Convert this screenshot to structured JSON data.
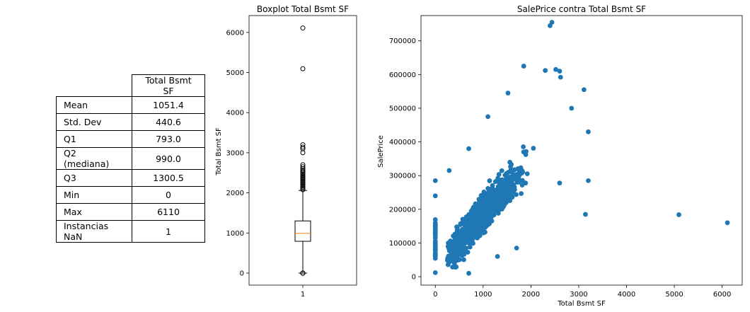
{
  "table": {
    "column_header": "Total Bsmt SF",
    "rows": [
      {
        "label": "Mean",
        "value": "1051.4"
      },
      {
        "label": "Std. Dev",
        "value": "440.6"
      },
      {
        "label": "Q1",
        "value": "793.0"
      },
      {
        "label": "Q2 (mediana)",
        "value": "990.0"
      },
      {
        "label": "Q3",
        "value": "1300.5"
      },
      {
        "label": "Min",
        "value": "0"
      },
      {
        "label": "Max",
        "value": "6110"
      },
      {
        "label": "Instancias NaN",
        "value": "1"
      }
    ]
  },
  "chart_data": [
    {
      "type": "boxplot",
      "title": "Boxplot Total Bsmt SF",
      "ylabel": "Total Bsmt SF",
      "xlabel": "",
      "x_tick_labels": [
        "1"
      ],
      "ylim": [
        -300,
        6420
      ],
      "y_ticks": [
        0,
        1000,
        2000,
        3000,
        4000,
        5000,
        6000
      ],
      "box": {
        "q1": 793.0,
        "median": 990.0,
        "q3": 1300.5,
        "whisker_low": 0,
        "whisker_high": 2060
      },
      "median_color": "#ff7f0e",
      "outliers": [
        0,
        0,
        0,
        2080,
        2110,
        2140,
        2170,
        2200,
        2230,
        2260,
        2290,
        2320,
        2350,
        2380,
        2410,
        2440,
        2470,
        2500,
        2530,
        2560,
        2600,
        2650,
        2700,
        3000,
        3100,
        3140,
        3200,
        5095,
        6110
      ]
    },
    {
      "type": "scatter",
      "title": "SalePrice contra Total Bsmt SF",
      "xlabel": "Total Bsmt SF",
      "ylabel": "SalePrice",
      "xlim": [
        -300,
        6420
      ],
      "ylim": [
        -25000,
        775000
      ],
      "x_ticks": [
        0,
        1000,
        2000,
        3000,
        4000,
        5000,
        6000
      ],
      "y_ticks": [
        0,
        100000,
        200000,
        300000,
        400000,
        500000,
        600000,
        700000
      ],
      "color": "#1f77b4",
      "notable_points": [
        {
          "x": 2400,
          "y": 745000
        },
        {
          "x": 2440,
          "y": 755000
        },
        {
          "x": 1520,
          "y": 545000
        },
        {
          "x": 1850,
          "y": 625000
        },
        {
          "x": 2300,
          "y": 612000
        },
        {
          "x": 2520,
          "y": 615000
        },
        {
          "x": 2600,
          "y": 610000
        },
        {
          "x": 2620,
          "y": 592000
        },
        {
          "x": 3110,
          "y": 555000
        },
        {
          "x": 2850,
          "y": 500000
        },
        {
          "x": 3200,
          "y": 430000
        },
        {
          "x": 3200,
          "y": 285000
        },
        {
          "x": 3140,
          "y": 185000
        },
        {
          "x": 5095,
          "y": 184000
        },
        {
          "x": 6110,
          "y": 160000
        },
        {
          "x": 700,
          "y": 380000
        },
        {
          "x": 1100,
          "y": 475000
        },
        {
          "x": 290,
          "y": 315000
        },
        {
          "x": 0,
          "y": 285000
        },
        {
          "x": 0,
          "y": 240000
        },
        {
          "x": 0,
          "y": 12000
        },
        {
          "x": 700,
          "y": 10000
        },
        {
          "x": 2600,
          "y": 278000
        },
        {
          "x": 1700,
          "y": 85000
        },
        {
          "x": 1300,
          "y": 60000
        },
        {
          "x": 400,
          "y": 40000
        }
      ]
    }
  ]
}
